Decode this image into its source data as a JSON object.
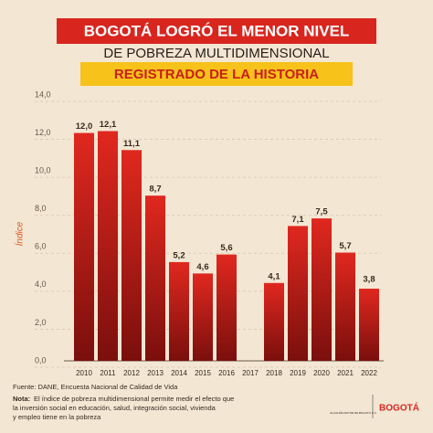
{
  "chart_data": {
    "type": "bar",
    "title": "BOGOTÁ LOGRÓ EL MENOR NIVEL",
    "subtitle": "DE POBREZA MULTIDIMENSIONAL",
    "subtitle2": "REGISTRADO DE LA HISTORIA",
    "y_label": "Índice",
    "categories": [
      "2010",
      "2011",
      "2012",
      "2013",
      "2014",
      "2015",
      "2016",
      "2017",
      "2018",
      "2019",
      "2020",
      "2021",
      "2022"
    ],
    "values": [
      12.0,
      12.1,
      11.1,
      8.7,
      5.2,
      4.6,
      5.6,
      null,
      4.1,
      7.1,
      7.5,
      5.7,
      3.8
    ],
    "value_labels": [
      "12,0",
      "12,1",
      "11,1",
      "8,7",
      "5,2",
      "4,6",
      "5,6",
      null,
      "4,1",
      "7,1",
      "7,5",
      "5,7",
      "3,8"
    ],
    "color": "#e0281f",
    "ylim": [
      0,
      14
    ],
    "yticks": [
      {
        "value": 0,
        "label": "0,0"
      },
      {
        "value": 2,
        "label": "2,0"
      },
      {
        "value": 4,
        "label": "4,0"
      },
      {
        "value": 6,
        "label": "6,0"
      },
      {
        "value": 8,
        "label": "8,0"
      },
      {
        "value": 10,
        "label": "10,0"
      },
      {
        "value": 12,
        "label": "12,0"
      },
      {
        "value": 14,
        "label": "14,0"
      }
    ],
    "grid": true,
    "source": "Fuente: DANE, Encuesta Nacional de Calidad de Vida",
    "note_label": "Nota:",
    "note_lines": [
      "El índice de pobreza multidimensional permite medir el efecto que",
      "la inversión social en educación, salud, integración social, vivienda",
      "y empleo tiene en la pobreza"
    ],
    "logo_text": "BOGOTÁ",
    "logo_small": "ALCALDÍA MAYOR DE BOGOTÁ D.C."
  }
}
